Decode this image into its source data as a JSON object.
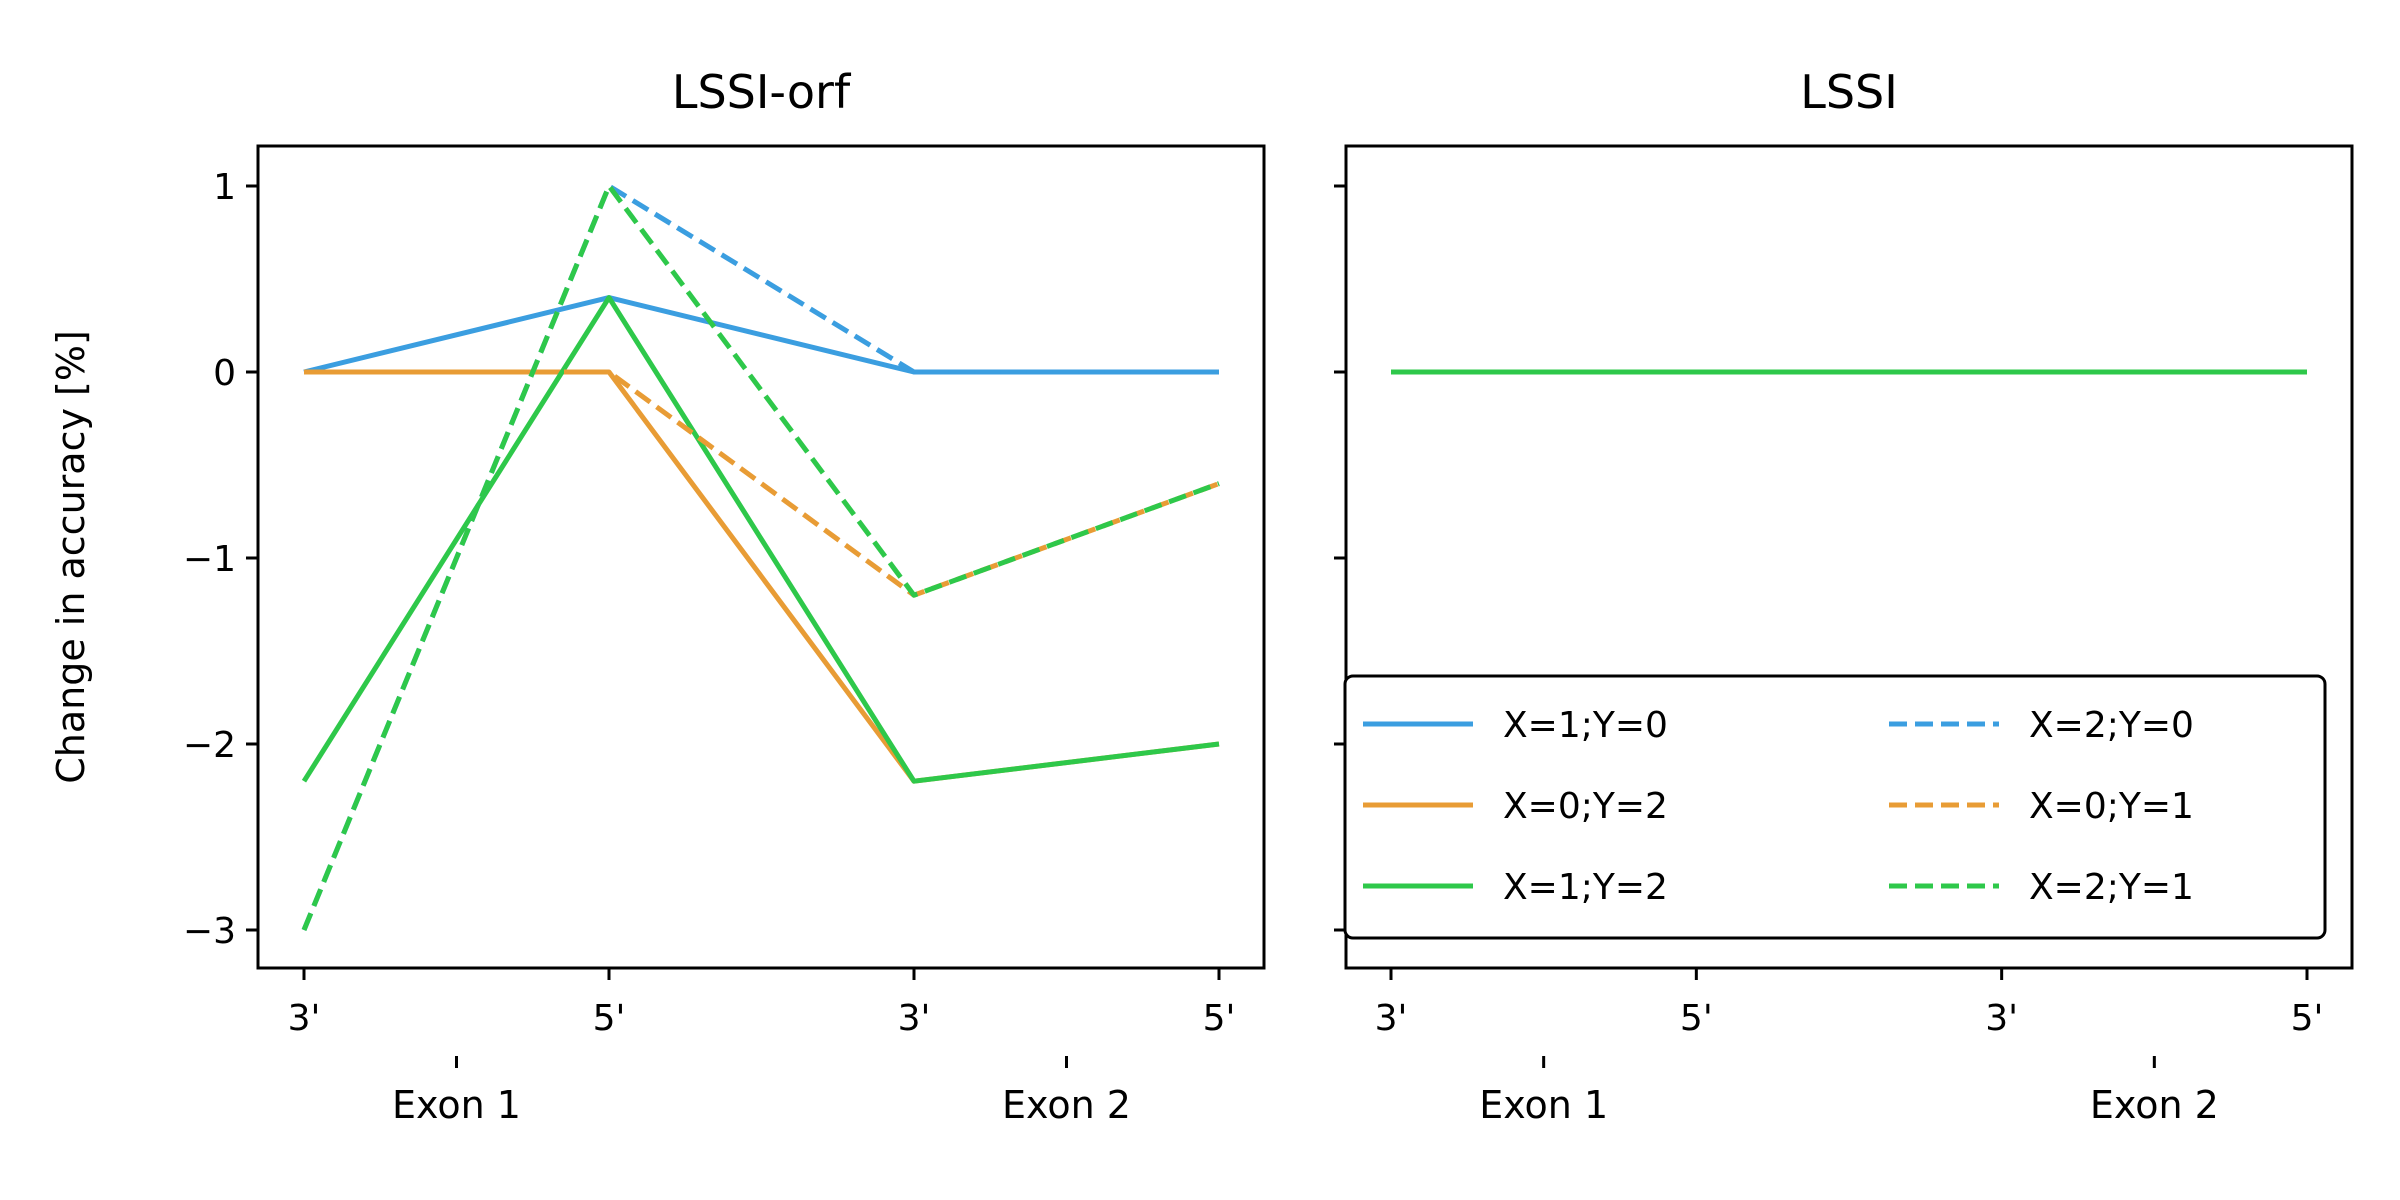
{
  "chart_data": [
    {
      "type": "line",
      "title": "LSSI-orf",
      "ylabel": "Change in accuracy [%]",
      "xlabel": "",
      "x_tick_labels": [
        "3'",
        "5'",
        "3'",
        "5'"
      ],
      "x_group_labels": [
        "Exon 1",
        "Exon 2"
      ],
      "ylim": [
        -3.2,
        1.2
      ],
      "y_ticks": [
        1,
        0,
        -1,
        -2,
        -3
      ],
      "y_tick_labels": [
        "1",
        "0",
        "−1",
        "−2",
        "−3"
      ],
      "grid": false,
      "series": [
        {
          "name": "X=1;Y=0",
          "color": "#3b9ee0",
          "dash": "solid",
          "values": [
            0,
            0.4,
            0,
            0
          ]
        },
        {
          "name": "X=0;Y=2",
          "color": "#e89c35",
          "dash": "solid",
          "values": [
            0,
            0,
            -2.2,
            -2.0
          ]
        },
        {
          "name": "X=1;Y=2",
          "color": "#2ec84a",
          "dash": "solid",
          "values": [
            -2.2,
            0.4,
            -2.2,
            -2.0
          ]
        },
        {
          "name": "X=2;Y=0",
          "color": "#3b9ee0",
          "dash": "dashed",
          "values": [
            -3.0,
            1.0,
            0,
            0
          ]
        },
        {
          "name": "X=0;Y=1",
          "color": "#e89c35",
          "dash": "dashed",
          "values": [
            0,
            0,
            -1.2,
            -0.6
          ]
        },
        {
          "name": "X=2;Y=1",
          "color": "#2ec84a",
          "dash": "dashed",
          "values": [
            -3.0,
            1.0,
            -1.2,
            -0.6
          ]
        }
      ]
    },
    {
      "type": "line",
      "title": "LSSI",
      "xlabel": "",
      "x_tick_labels": [
        "3'",
        "5'",
        "3'",
        "5'"
      ],
      "x_group_labels": [
        "Exon 1",
        "Exon 2"
      ],
      "ylim": [
        -3.2,
        1.2
      ],
      "y_ticks": [
        1,
        0,
        -1,
        -2,
        -3
      ],
      "grid": false,
      "legend": {
        "placement": "lower right",
        "columns": 2
      },
      "series": [
        {
          "name": "X=1;Y=0",
          "color": "#3b9ee0",
          "dash": "solid",
          "values": [
            0,
            0,
            0,
            0
          ]
        },
        {
          "name": "X=0;Y=2",
          "color": "#e89c35",
          "dash": "solid",
          "values": [
            0,
            0,
            0,
            0
          ]
        },
        {
          "name": "X=1;Y=2",
          "color": "#2ec84a",
          "dash": "solid",
          "values": [
            0,
            0,
            0,
            0
          ]
        },
        {
          "name": "X=2;Y=0",
          "color": "#3b9ee0",
          "dash": "dashed",
          "values": [
            0,
            0,
            0,
            0
          ]
        },
        {
          "name": "X=0;Y=1",
          "color": "#e89c35",
          "dash": "dashed",
          "values": [
            0,
            0,
            0,
            0
          ]
        },
        {
          "name": "X=2;Y=1",
          "color": "#2ec84a",
          "dash": "dashed",
          "values": [
            0,
            0,
            0,
            0
          ]
        }
      ]
    }
  ]
}
